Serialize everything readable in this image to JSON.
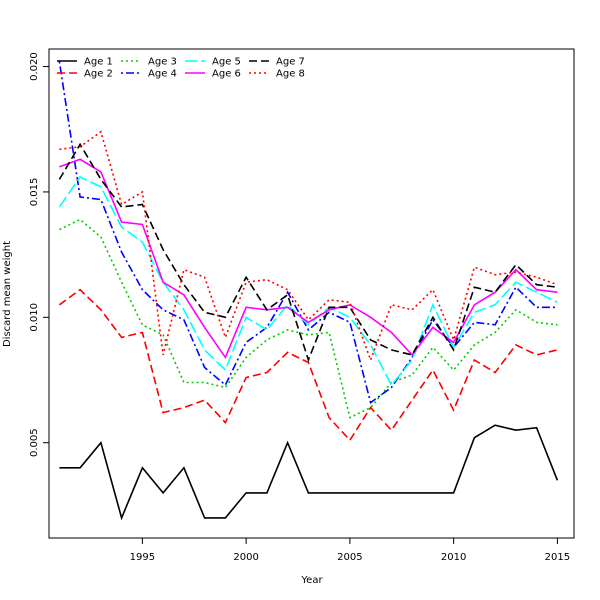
{
  "chart_data": {
    "type": "line",
    "title": "",
    "xlabel": "Year",
    "ylabel": "Discard mean weight",
    "xlim": [
      1990.5,
      2015.8
    ],
    "ylim": [
      0.0012,
      0.0207
    ],
    "x_ticks": [
      1995,
      2000,
      2005,
      2010,
      2015
    ],
    "x_tick_labels": [
      "1995",
      "2000",
      "2005",
      "2010",
      "2015"
    ],
    "y_ticks": [
      0.005,
      0.01,
      0.015,
      0.02
    ],
    "y_tick_labels": [
      "0.005",
      "0.010",
      "0.015",
      "0.020"
    ],
    "grid": false,
    "legend_position": "top-left",
    "x": [
      1991,
      1992,
      1993,
      1994,
      1995,
      1996,
      1997,
      1998,
      1999,
      2000,
      2001,
      2002,
      2003,
      2004,
      2005,
      2006,
      2007,
      2008,
      2009,
      2010,
      2011,
      2012,
      2013,
      2014,
      2015
    ],
    "series": [
      {
        "name": "Age 1",
        "color": "#000000",
        "dash": "solid",
        "values": [
          0.004,
          0.004,
          0.005,
          0.002,
          0.004,
          0.003,
          0.004,
          0.002,
          0.002,
          0.003,
          0.003,
          0.005,
          0.003,
          0.003,
          0.003,
          0.003,
          0.003,
          0.003,
          0.003,
          0.003,
          0.0052,
          0.0057,
          0.0055,
          0.0056,
          0.0035
        ]
      },
      {
        "name": "Age 2",
        "color": "#ff0000",
        "dash": "dashed",
        "values": [
          0.0105,
          0.0111,
          0.0103,
          0.0092,
          0.0094,
          0.0062,
          0.0064,
          0.0067,
          0.0058,
          0.0076,
          0.0078,
          0.0086,
          0.0082,
          0.006,
          0.0051,
          0.0064,
          0.0055,
          0.0067,
          0.0079,
          0.0063,
          0.0083,
          0.0078,
          0.0089,
          0.0085,
          0.0087
        ]
      },
      {
        "name": "Age 3",
        "color": "#00cd00",
        "dash": "dotted",
        "values": [
          0.0135,
          0.0139,
          0.0132,
          0.0114,
          0.0097,
          0.0093,
          0.0074,
          0.0074,
          0.0072,
          0.0084,
          0.0091,
          0.0095,
          0.0093,
          0.0094,
          0.006,
          0.0064,
          0.0074,
          0.0077,
          0.0088,
          0.0079,
          0.0089,
          0.0094,
          0.0103,
          0.0098,
          0.0097
        ]
      },
      {
        "name": "Age 4",
        "color": "#0000ff",
        "dash": "dashdot",
        "values": [
          0.0202,
          0.0148,
          0.0147,
          0.0126,
          0.0111,
          0.0103,
          0.0099,
          0.008,
          0.0073,
          0.009,
          0.0096,
          0.011,
          0.0095,
          0.0102,
          0.0098,
          0.0066,
          0.0072,
          0.0084,
          0.0099,
          0.0088,
          0.0098,
          0.0097,
          0.0112,
          0.0104,
          0.0104
        ]
      },
      {
        "name": "Age 5",
        "color": "#00ffff",
        "dash": "longdash",
        "values": [
          0.0144,
          0.0156,
          0.0152,
          0.0136,
          0.013,
          0.0114,
          0.0103,
          0.0087,
          0.0079,
          0.01,
          0.0095,
          0.0105,
          0.0097,
          0.0104,
          0.01,
          0.0089,
          0.0073,
          0.0083,
          0.0105,
          0.0088,
          0.0102,
          0.0105,
          0.0114,
          0.011,
          0.0106
        ]
      },
      {
        "name": "Age 6",
        "color": "#ff00ff",
        "dash": "solid",
        "values": [
          0.016,
          0.0163,
          0.0158,
          0.0138,
          0.0137,
          0.0114,
          0.0109,
          0.0096,
          0.0084,
          0.0104,
          0.0103,
          0.0104,
          0.0098,
          0.0103,
          0.0105,
          0.01,
          0.0094,
          0.0085,
          0.0096,
          0.009,
          0.0105,
          0.011,
          0.0119,
          0.0111,
          0.011
        ]
      },
      {
        "name": "Age 7",
        "color": "#000000",
        "dash": "dashed",
        "values": [
          0.0155,
          0.0169,
          0.0155,
          0.0144,
          0.0145,
          0.0127,
          0.0113,
          0.0102,
          0.01,
          0.0116,
          0.0103,
          0.0109,
          0.0083,
          0.0104,
          0.0104,
          0.0091,
          0.0087,
          0.0085,
          0.01,
          0.0087,
          0.0112,
          0.011,
          0.0121,
          0.0113,
          0.0112
        ]
      },
      {
        "name": "Age 8",
        "color": "#ff0000",
        "dash": "dotted",
        "values": [
          0.0167,
          0.0168,
          0.0174,
          0.0145,
          0.015,
          0.0085,
          0.0119,
          0.0116,
          0.0092,
          0.0114,
          0.0115,
          0.0111,
          0.0099,
          0.0107,
          0.0106,
          0.0083,
          0.0105,
          0.0103,
          0.0111,
          0.0091,
          0.012,
          0.0117,
          0.0118,
          0.0116,
          0.0113
        ]
      }
    ]
  }
}
